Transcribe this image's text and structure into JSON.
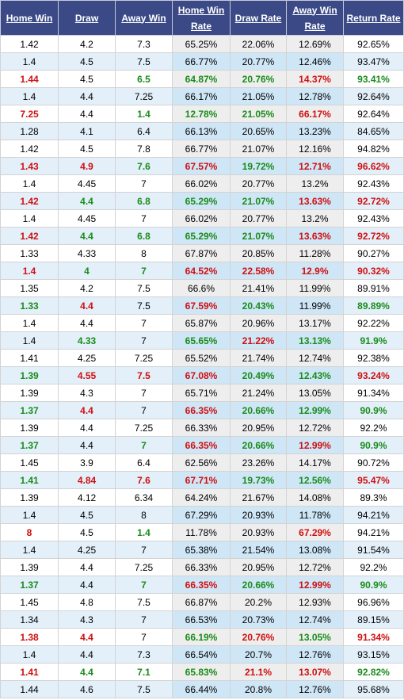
{
  "headers": [
    "Home Win",
    "Draw",
    "Away Win",
    "Home Win Rate",
    "Draw Rate",
    "Away Win Rate",
    "Return Rate"
  ],
  "colors": {
    "header_bg": "#3b4a86",
    "green": "#1a8c1a",
    "red": "#d01010",
    "alt_row": "#e3f0fa",
    "rate_cell": "#eeeeee"
  },
  "rows": [
    [
      "1.42",
      "4.2",
      "7.3",
      "65.25%",
      "22.06%",
      "12.69%",
      "92.65%"
    ],
    [
      "1.4",
      "4.5",
      "7.5",
      "66.77%",
      "20.77%",
      "12.46%",
      "93.47%"
    ],
    [
      "1.44",
      "4.5",
      "6.5",
      "64.87%",
      "20.76%",
      "14.37%",
      "93.41%"
    ],
    [
      "1.4",
      "4.4",
      "7.25",
      "66.17%",
      "21.05%",
      "12.78%",
      "92.64%"
    ],
    [
      "7.25",
      "4.4",
      "1.4",
      "12.78%",
      "21.05%",
      "66.17%",
      "92.64%"
    ],
    [
      "1.28",
      "4.1",
      "6.4",
      "66.13%",
      "20.65%",
      "13.23%",
      "84.65%"
    ],
    [
      "1.42",
      "4.5",
      "7.8",
      "66.77%",
      "21.07%",
      "12.16%",
      "94.82%"
    ],
    [
      "1.43",
      "4.9",
      "7.6",
      "67.57%",
      "19.72%",
      "12.71%",
      "96.62%"
    ],
    [
      "1.4",
      "4.45",
      "7",
      "66.02%",
      "20.77%",
      "13.2%",
      "92.43%"
    ],
    [
      "1.42",
      "4.4",
      "6.8",
      "65.29%",
      "21.07%",
      "13.63%",
      "92.72%"
    ],
    [
      "1.4",
      "4.45",
      "7",
      "66.02%",
      "20.77%",
      "13.2%",
      "92.43%"
    ],
    [
      "1.42",
      "4.4",
      "6.8",
      "65.29%",
      "21.07%",
      "13.63%",
      "92.72%"
    ],
    [
      "1.33",
      "4.33",
      "8",
      "67.87%",
      "20.85%",
      "11.28%",
      "90.27%"
    ],
    [
      "1.4",
      "4",
      "7",
      "64.52%",
      "22.58%",
      "12.9%",
      "90.32%"
    ],
    [
      "1.35",
      "4.2",
      "7.5",
      "66.6%",
      "21.41%",
      "11.99%",
      "89.91%"
    ],
    [
      "1.33",
      "4.4",
      "7.5",
      "67.59%",
      "20.43%",
      "11.99%",
      "89.89%"
    ],
    [
      "1.4",
      "4.4",
      "7",
      "65.87%",
      "20.96%",
      "13.17%",
      "92.22%"
    ],
    [
      "1.4",
      "4.33",
      "7",
      "65.65%",
      "21.22%",
      "13.13%",
      "91.9%"
    ],
    [
      "1.41",
      "4.25",
      "7.25",
      "65.52%",
      "21.74%",
      "12.74%",
      "92.38%"
    ],
    [
      "1.39",
      "4.55",
      "7.5",
      "67.08%",
      "20.49%",
      "12.43%",
      "93.24%"
    ],
    [
      "1.39",
      "4.3",
      "7",
      "65.71%",
      "21.24%",
      "13.05%",
      "91.34%"
    ],
    [
      "1.37",
      "4.4",
      "7",
      "66.35%",
      "20.66%",
      "12.99%",
      "90.9%"
    ],
    [
      "1.39",
      "4.4",
      "7.25",
      "66.33%",
      "20.95%",
      "12.72%",
      "92.2%"
    ],
    [
      "1.37",
      "4.4",
      "7",
      "66.35%",
      "20.66%",
      "12.99%",
      "90.9%"
    ],
    [
      "1.45",
      "3.9",
      "6.4",
      "62.56%",
      "23.26%",
      "14.17%",
      "90.72%"
    ],
    [
      "1.41",
      "4.84",
      "7.6",
      "67.71%",
      "19.73%",
      "12.56%",
      "95.47%"
    ],
    [
      "1.39",
      "4.12",
      "6.34",
      "64.24%",
      "21.67%",
      "14.08%",
      "89.3%"
    ],
    [
      "1.4",
      "4.5",
      "8",
      "67.29%",
      "20.93%",
      "11.78%",
      "94.21%"
    ],
    [
      "8",
      "4.5",
      "1.4",
      "11.78%",
      "20.93%",
      "67.29%",
      "94.21%"
    ],
    [
      "1.4",
      "4.25",
      "7",
      "65.38%",
      "21.54%",
      "13.08%",
      "91.54%"
    ],
    [
      "1.39",
      "4.4",
      "7.25",
      "66.33%",
      "20.95%",
      "12.72%",
      "92.2%"
    ],
    [
      "1.37",
      "4.4",
      "7",
      "66.35%",
      "20.66%",
      "12.99%",
      "90.9%"
    ],
    [
      "1.45",
      "4.8",
      "7.5",
      "66.87%",
      "20.2%",
      "12.93%",
      "96.96%"
    ],
    [
      "1.34",
      "4.3",
      "7",
      "66.53%",
      "20.73%",
      "12.74%",
      "89.15%"
    ],
    [
      "1.38",
      "4.4",
      "7",
      "66.19%",
      "20.76%",
      "13.05%",
      "91.34%"
    ],
    [
      "1.4",
      "4.4",
      "7.3",
      "66.54%",
      "20.7%",
      "12.76%",
      "93.15%"
    ],
    [
      "1.41",
      "4.4",
      "7.1",
      "65.83%",
      "21.1%",
      "13.07%",
      "92.82%"
    ],
    [
      "1.44",
      "4.6",
      "7.5",
      "66.44%",
      "20.8%",
      "12.76%",
      "95.68%"
    ]
  ],
  "cell_colors": [
    "nnnnnnn",
    "nnnnnnn",
    "rngggrg",
    "nnnnnnn",
    "rngggrn",
    "nnnnnnn",
    "nnnnnnn",
    "rrgrgrr",
    "nnnnnnn",
    "rggggrr",
    "nnnnnnn",
    "rggggrr",
    "nnnnnnn",
    "rggrrrr",
    "nnnnnnn",
    "grnrgng",
    "nnnnnnn",
    "ngngrgg",
    "nnnnnnn",
    "grrrggr",
    "nnnnnnn",
    "grnrggg",
    "nnnnnnn",
    "gngrgrg",
    "nnnnnnn",
    "grrrggr",
    "nnnnnnn",
    "nnnnnnn",
    "rngnnrn",
    "nnnnnnn",
    "nnnnnnn",
    "gngrgrg",
    "nnnnnnn",
    "nnnnnnn",
    "rrngrgr",
    "nnnnnnn",
    "rgggrrg",
    "nnnnnnn"
  ]
}
